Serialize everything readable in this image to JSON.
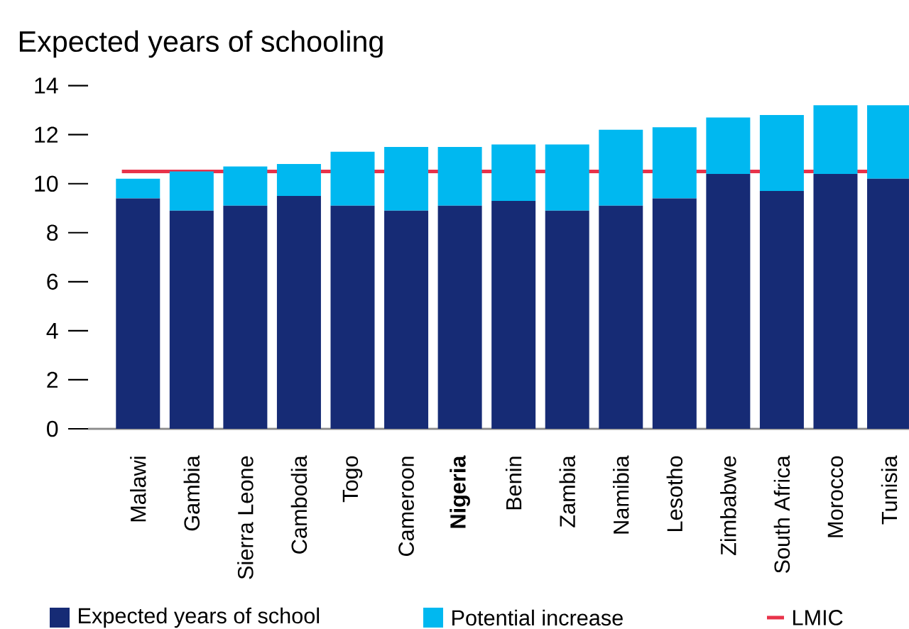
{
  "chart_data": {
    "type": "bar",
    "title": "Expected years of schooling",
    "stacked": true,
    "legend": "bottom",
    "categories": [
      "Malawi",
      "Gambia",
      "Sierra Leone",
      "Cambodia",
      "Togo",
      "Cameroon",
      "**Nigeria**",
      "Benin",
      "Zambia",
      "Namibia",
      "Lesotho",
      "Zimbabwe",
      "South Africa",
      "Morocco",
      "Tunisia"
    ],
    "series": [
      {
        "name": "Expected years of school",
        "color": "#162b75",
        "values": [
          9.4,
          8.9,
          9.1,
          9.5,
          9.1,
          8.9,
          9.1,
          9.3,
          8.9,
          9.1,
          9.4,
          10.4,
          9.7,
          10.4,
          10.2
        ]
      },
      {
        "name": "Potential increase",
        "color": "#00b8f0",
        "values": [
          0.8,
          1.6,
          1.6,
          1.3,
          2.2,
          2.6,
          2.4,
          2.3,
          2.7,
          3.1,
          2.9,
          2.3,
          3.1,
          2.8,
          3.0
        ]
      }
    ],
    "ylim": [
      0,
      14
    ],
    "yticks": [
      0,
      2,
      4,
      6,
      8,
      10,
      12,
      14
    ],
    "ref_lines": [
      {
        "axis": "y",
        "value": 10.5,
        "label": "LMIC",
        "color": "#e8334a"
      }
    ]
  }
}
